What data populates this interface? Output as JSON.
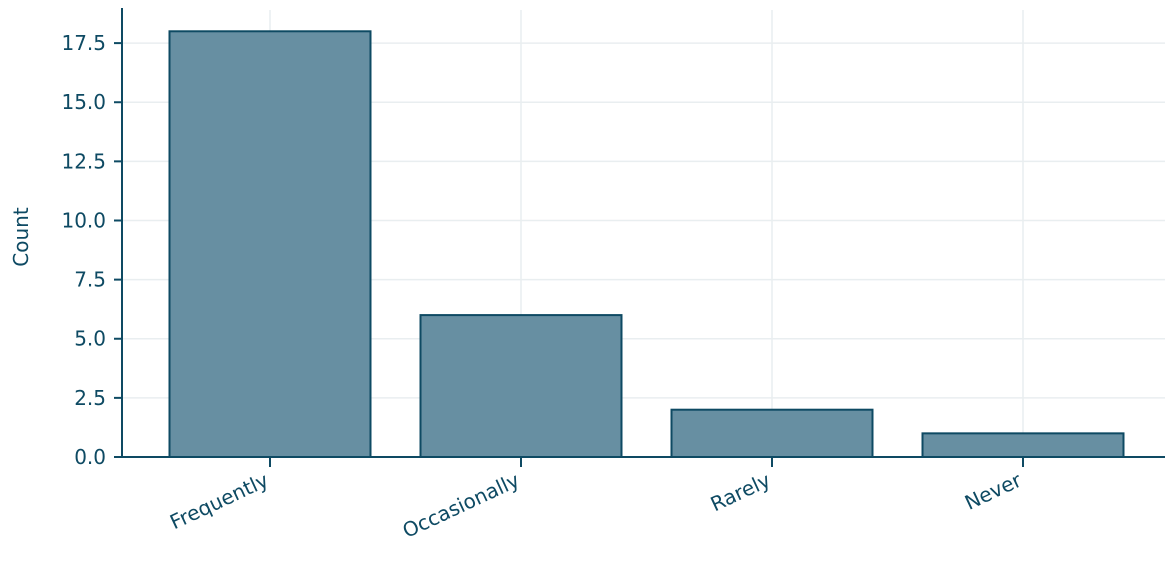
{
  "chart_data": {
    "type": "bar",
    "title": "",
    "xlabel": "",
    "ylabel": "Count",
    "categories": [
      "Frequently",
      "Occasionally",
      "Rarely",
      "Never"
    ],
    "values": [
      18,
      6,
      2,
      1
    ],
    "ylim": [
      0,
      18.9
    ],
    "yticks": [
      0.0,
      2.5,
      5.0,
      7.5,
      10.0,
      12.5,
      15.0,
      17.5
    ],
    "ytick_labels": [
      "0.0",
      "2.5",
      "5.0",
      "7.5",
      "10.0",
      "12.5",
      "15.0",
      "17.5"
    ],
    "grid": true,
    "legend": "none",
    "colors": {
      "bar_fill": "#678fa2",
      "bar_edge": "#0e4a63",
      "axis": "#0e4a63",
      "text": "#0e4a63",
      "grid": "#e9eef0"
    }
  }
}
